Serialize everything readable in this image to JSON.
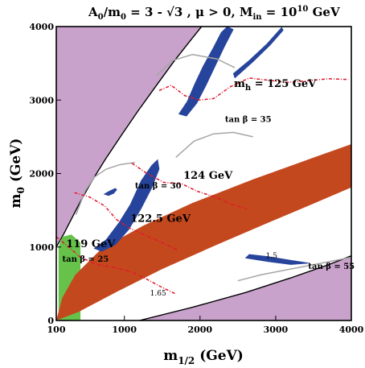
{
  "chart_data": {
    "type": "scatter",
    "title": "A0/m0 = 3 - √3 ,  μ > 0, Min = 10^10 GeV",
    "title_parts": {
      "a0_label": "A",
      "a0_sub": "0",
      "m0_label": "/m",
      "m0_sub": "0",
      "ratio_value": " = 3 - √3 ,  μ > 0, M",
      "min_sub": "in",
      "scale_text": " = 10",
      "scale_exp": "10",
      "unit": " GeV"
    },
    "xlabel": {
      "main": "m",
      "sub": "1/2",
      "unit": " (GeV)"
    },
    "ylabel": {
      "main": "m",
      "sub": "0",
      "unit": " (GeV)"
    },
    "xlim": [
      100,
      4000
    ],
    "ylim": [
      0,
      4000
    ],
    "x_ticks": [
      {
        "value": 100,
        "label": "100"
      },
      {
        "value": 1000,
        "label": "1000"
      },
      {
        "value": 2000,
        "label": "2000"
      },
      {
        "value": 3000,
        "label": "3000"
      },
      {
        "value": 4000,
        "label": "4000"
      }
    ],
    "y_ticks": [
      {
        "value": 0,
        "label": "0"
      },
      {
        "value": 1000,
        "label": "1000"
      },
      {
        "value": 2000,
        "label": "2000"
      },
      {
        "value": 3000,
        "label": "3000"
      },
      {
        "value": 4000,
        "label": "4000"
      }
    ],
    "grid": false,
    "colors": {
      "excluded_purple": "#c9a2cc",
      "lsp_red": "#c4481e",
      "bsg_green": "#66c24b",
      "relic_blue": "#27449c",
      "higgs_red_dashed": "#e0182a",
      "tan_beta_gray": "#a6a6a6",
      "muon_green": "#4fb84a",
      "boundary_black": "#000000"
    },
    "annotations": [
      {
        "text": "m",
        "sub": "h",
        "rest": "  = 125 GeV",
        "x": 2450,
        "y": 3180,
        "style": "big"
      },
      {
        "text": "124 GeV",
        "x": 1780,
        "y": 1930,
        "style": "big"
      },
      {
        "text": "122.5 GeV",
        "x": 1080,
        "y": 1340,
        "style": "big"
      },
      {
        "text": "119 GeV",
        "x": 230,
        "y": 1000,
        "style": "big"
      },
      {
        "text": "tan β = 35",
        "x": 2330,
        "y": 2700,
        "style": "small"
      },
      {
        "text": "tan β = 30",
        "x": 1140,
        "y": 1800,
        "style": "small"
      },
      {
        "text": "tan β = 25",
        "x": 180,
        "y": 800,
        "style": "small"
      },
      {
        "text": "tan β = 55",
        "x": 3430,
        "y": 700,
        "style": "small"
      },
      {
        "text": "1.5",
        "x": 2870,
        "y": 850,
        "style": "tiny"
      },
      {
        "text": "1.65",
        "x": 1340,
        "y": 340,
        "style": "tiny"
      }
    ],
    "regions": {
      "excluded_left_boundary": [
        [
          100,
          1000
        ],
        [
          200,
          1180
        ],
        [
          300,
          1380
        ],
        [
          420,
          1620
        ],
        [
          560,
          1880
        ],
        [
          740,
          2180
        ],
        [
          960,
          2520
        ],
        [
          1180,
          2850
        ],
        [
          1410,
          3180
        ],
        [
          1650,
          3520
        ],
        [
          1880,
          3820
        ],
        [
          2020,
          4000
        ]
      ],
      "excluded_right_boundary": [
        [
          1200,
          0
        ],
        [
          1900,
          180
        ],
        [
          2600,
          380
        ],
        [
          3200,
          580
        ],
        [
          3700,
          760
        ],
        [
          4000,
          880
        ]
      ],
      "stau_coannihilation_strip": [
        [
          100,
          0
        ],
        [
          400,
          120
        ],
        [
          900,
          390
        ],
        [
          1500,
          700
        ],
        [
          2200,
          1020
        ],
        [
          2900,
          1330
        ],
        [
          3500,
          1590
        ],
        [
          4000,
          1810
        ],
        [
          4000,
          2400
        ],
        [
          3400,
          2180
        ],
        [
          2700,
          1920
        ],
        [
          1900,
          1600
        ],
        [
          1250,
          1290
        ],
        [
          700,
          980
        ],
        [
          350,
          620
        ],
        [
          180,
          310
        ]
      ],
      "bsg_excluded": [
        [
          130,
          0
        ],
        [
          420,
          0
        ],
        [
          420,
          1060
        ],
        [
          300,
          1170
        ],
        [
          180,
          1140
        ],
        [
          130,
          1000
        ]
      ],
      "relic_funnel_main": [
        [
          600,
          980
        ],
        [
          760,
          1100
        ],
        [
          920,
          1320
        ],
        [
          1080,
          1580
        ],
        [
          1220,
          1900
        ],
        [
          1360,
          2110
        ],
        [
          1440,
          2190
        ],
        [
          1460,
          2060
        ],
        [
          1360,
          1800
        ],
        [
          1220,
          1520
        ],
        [
          1060,
          1240
        ],
        [
          880,
          1030
        ],
        [
          700,
          940
        ]
      ],
      "relic_funnel_upper": [
        [
          1720,
          2810
        ],
        [
          1830,
          2980
        ],
        [
          1930,
          3220
        ],
        [
          2040,
          3460
        ],
        [
          2180,
          3720
        ],
        [
          2280,
          3920
        ],
        [
          2360,
          4000
        ],
        [
          2440,
          3960
        ],
        [
          2320,
          3720
        ],
        [
          2200,
          3460
        ],
        [
          2080,
          3200
        ],
        [
          1960,
          2960
        ],
        [
          1820,
          2780
        ]
      ],
      "relic_thin_upper": [
        [
          2460,
          3300
        ],
        [
          2700,
          3520
        ],
        [
          2930,
          3750
        ],
        [
          3100,
          3950
        ],
        [
          3080,
          3990
        ],
        [
          2880,
          3760
        ],
        [
          2650,
          3540
        ],
        [
          2440,
          3360
        ]
      ],
      "relic_strip_lower": [
        [
          2600,
          850
        ],
        [
          2900,
          800
        ],
        [
          3200,
          760
        ],
        [
          3450,
          780
        ],
        [
          3200,
          820
        ],
        [
          2900,
          870
        ],
        [
          2650,
          900
        ]
      ],
      "relic_small_loop": [
        [
          730,
          1720
        ],
        [
          800,
          1760
        ],
        [
          880,
          1800
        ],
        [
          900,
          1780
        ],
        [
          860,
          1730
        ],
        [
          790,
          1700
        ]
      ]
    },
    "higgs_contours": [
      {
        "label": "125 GeV",
        "points": [
          [
            1460,
            3130
          ],
          [
            1620,
            3200
          ],
          [
            1800,
            3060
          ],
          [
            1990,
            3000
          ],
          [
            2180,
            3020
          ],
          [
            2400,
            3180
          ],
          [
            2650,
            3300
          ],
          [
            2900,
            3270
          ],
          [
            3150,
            3240
          ],
          [
            3400,
            3260
          ],
          [
            3700,
            3290
          ],
          [
            3960,
            3280
          ]
        ]
      },
      {
        "label": "124 GeV",
        "points": [
          [
            1100,
            2140
          ],
          [
            1300,
            2000
          ],
          [
            1520,
            1880
          ],
          [
            1760,
            1860
          ],
          [
            1960,
            1760
          ],
          [
            2200,
            1680
          ],
          [
            2420,
            1580
          ],
          [
            2620,
            1520
          ]
        ]
      },
      {
        "label": "122.5 GeV",
        "points": [
          [
            340,
            1740
          ],
          [
            540,
            1680
          ],
          [
            740,
            1560
          ],
          [
            900,
            1370
          ],
          [
            1080,
            1250
          ],
          [
            1300,
            1150
          ],
          [
            1500,
            1060
          ],
          [
            1700,
            960
          ]
        ]
      },
      {
        "label": "119 GeV",
        "points": [
          [
            100,
            1140
          ],
          [
            240,
            1020
          ],
          [
            420,
            860
          ],
          [
            640,
            760
          ],
          [
            880,
            720
          ],
          [
            1100,
            660
          ],
          [
            1300,
            560
          ],
          [
            1480,
            460
          ],
          [
            1680,
            360
          ]
        ]
      }
    ],
    "tan_beta_contours": [
      {
        "label": "35",
        "points": [
          [
            1420,
            3330
          ],
          [
            1640,
            3540
          ],
          [
            1900,
            3620
          ],
          [
            2220,
            3560
          ],
          [
            2460,
            3440
          ]
        ]
      },
      {
        "label": "35-lower",
        "points": [
          [
            1680,
            2220
          ],
          [
            1920,
            2440
          ],
          [
            2180,
            2540
          ],
          [
            2440,
            2560
          ],
          [
            2700,
            2500
          ]
        ]
      },
      {
        "label": "30",
        "points": [
          [
            360,
            1440
          ],
          [
            480,
            1760
          ],
          [
            600,
            1950
          ],
          [
            760,
            2060
          ],
          [
            940,
            2120
          ],
          [
            1140,
            2150
          ]
        ]
      },
      {
        "label": "55",
        "points": [
          [
            2500,
            540
          ],
          [
            2800,
            620
          ],
          [
            3100,
            680
          ],
          [
            3400,
            740
          ],
          [
            3700,
            800
          ],
          [
            4000,
            860
          ]
        ]
      }
    ]
  }
}
